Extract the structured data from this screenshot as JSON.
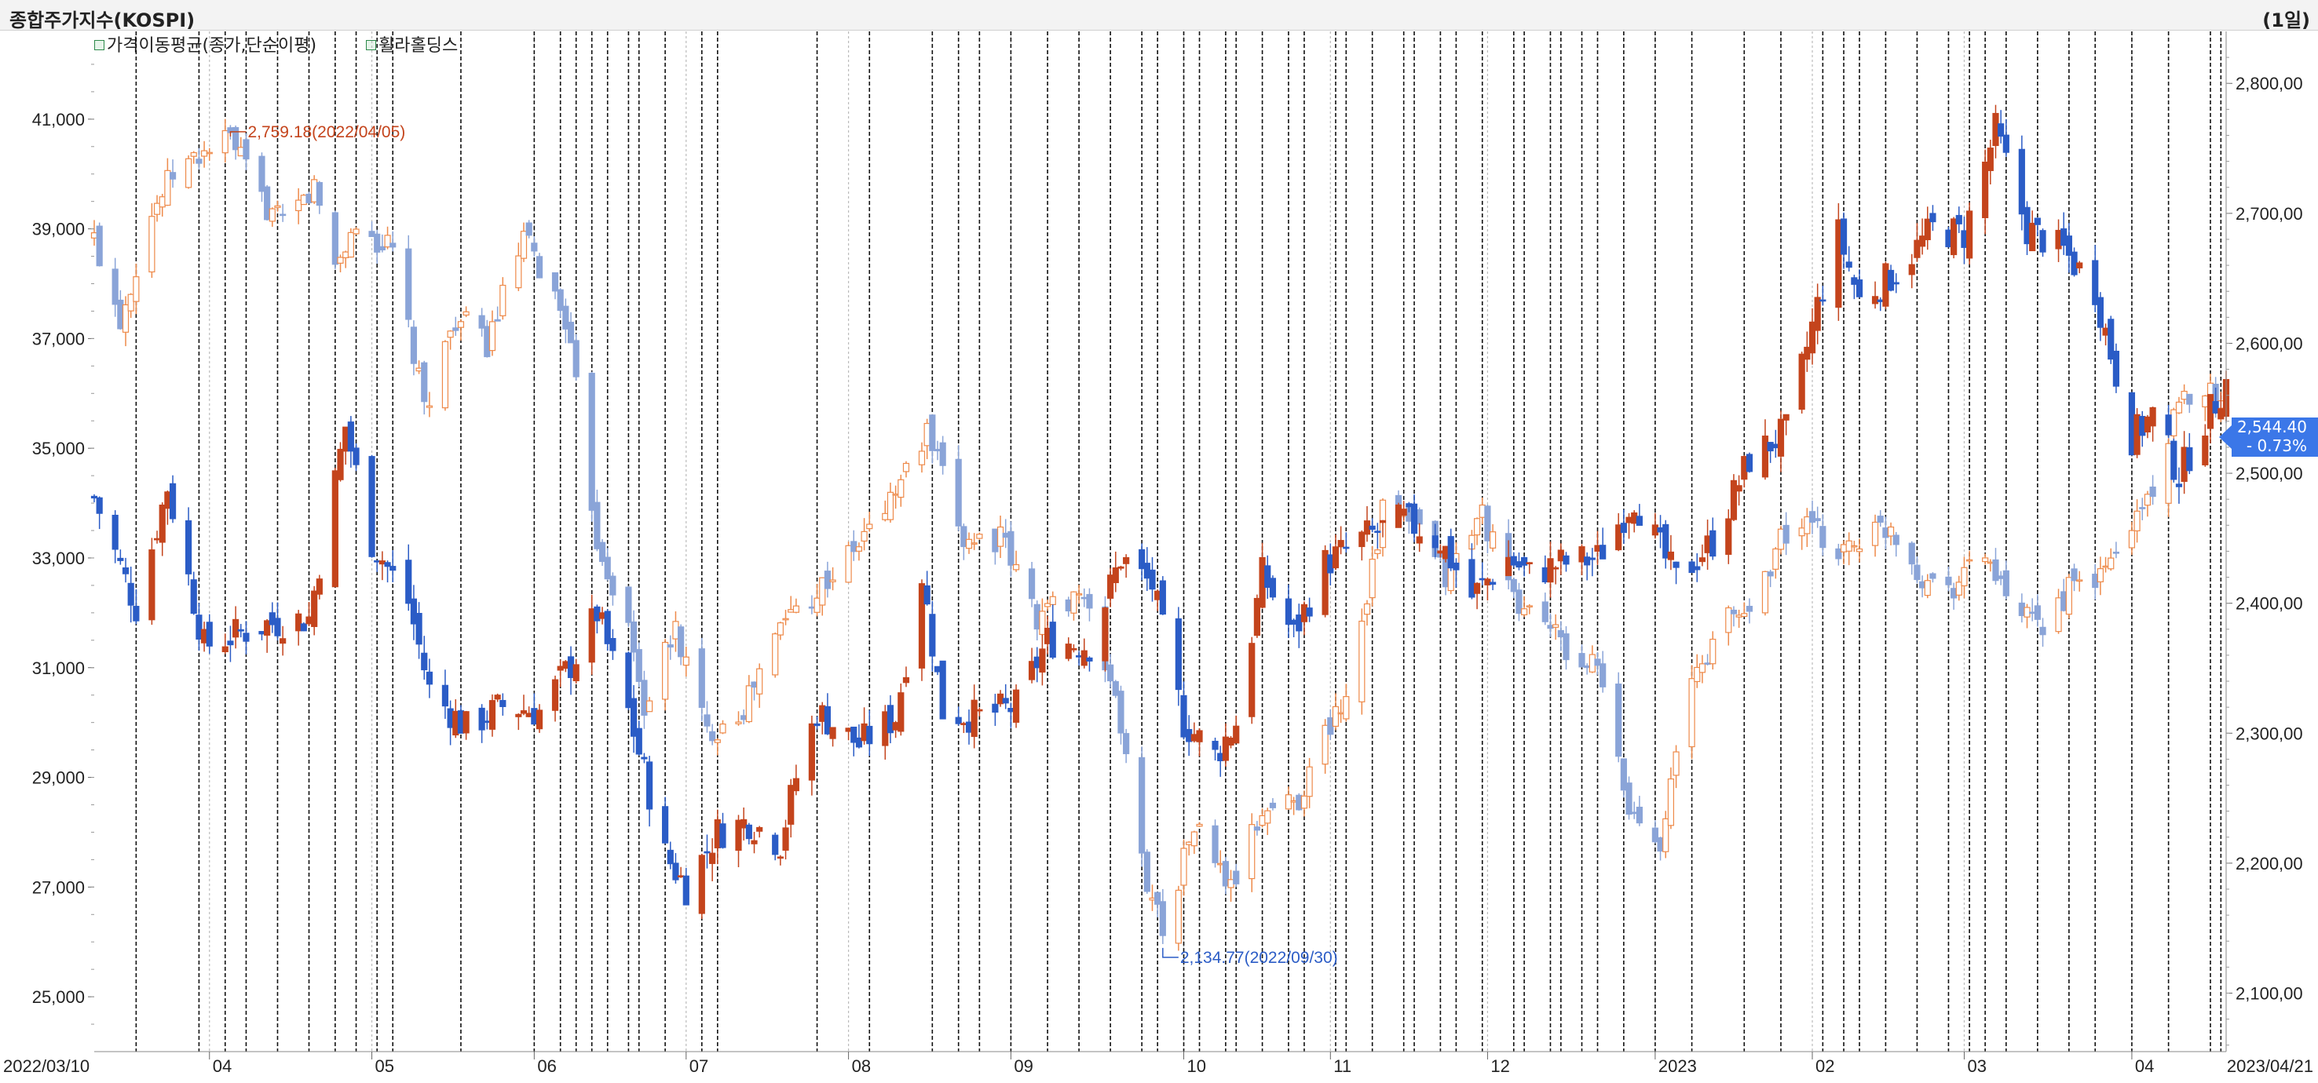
{
  "header": {
    "title": "종합주가지수(KOSPI)",
    "period": "(1일)"
  },
  "legend": [
    {
      "label": "가격이동평균(종가,단순이평)"
    },
    {
      "label": "휠라홀딩스"
    }
  ],
  "chart_data": {
    "type": "candlestick",
    "x_range": [
      "2022/03/10",
      "2023/04/21"
    ],
    "x_tick_labels": [
      "2022/03/10",
      "04",
      "05",
      "06",
      "07",
      "08",
      "09",
      "10",
      "11",
      "12",
      "2023",
      "02",
      "03",
      "04",
      "2023/04/21"
    ],
    "left_axis": {
      "ylim": [
        24000,
        42600
      ],
      "ticks": [
        "25,000",
        "27,000",
        "29,000",
        "31,000",
        "33,000",
        "35,000",
        "37,000",
        "39,000",
        "41,000"
      ]
    },
    "right_axis": {
      "ylim": [
        2055,
        2840
      ],
      "ticks": [
        "2,100,00",
        "2,200,00",
        "2,300,00",
        "2,400,00",
        "2,500,00",
        "2,600,00",
        "2,700,00",
        "2,800,00"
      ]
    },
    "colors": {
      "up": "#c4441c",
      "down": "#2b5cc6",
      "kospi_up": "#ee8a4a",
      "kospi_down": "#8aa4d8",
      "grid": "#111111",
      "month_line": "#bbbbbb"
    },
    "series": [
      {
        "name": "휠라홀딩스",
        "axis": "left",
        "style": "solid",
        "anchors": [
          [
            "2022/03/10",
            34100
          ],
          [
            "2022/03/18",
            32100
          ],
          [
            "2022/03/24",
            34300
          ],
          [
            "2022/03/31",
            31400
          ],
          [
            "2022/04/12",
            31800
          ],
          [
            "2022/04/20",
            31900
          ],
          [
            "2022/04/27",
            35400
          ],
          [
            "2022/05/02",
            33300
          ],
          [
            "2022/05/09",
            32200
          ],
          [
            "2022/05/13",
            30600
          ],
          [
            "2022/05/20",
            29900
          ],
          [
            "2022/05/27",
            30300
          ],
          [
            "2022/06/03",
            30200
          ],
          [
            "2022/06/10",
            31200
          ],
          [
            "2022/06/14",
            32000
          ],
          [
            "2022/06/20",
            30200
          ],
          [
            "2022/06/27",
            27600
          ],
          [
            "2022/07/01",
            27000
          ],
          [
            "2022/07/07",
            28000
          ],
          [
            "2022/07/13",
            28200
          ],
          [
            "2022/07/19",
            27800
          ],
          [
            "2022/07/22",
            29000
          ],
          [
            "2022/07/26",
            30200
          ],
          [
            "2022/08/03",
            29600
          ],
          [
            "2022/08/10",
            30100
          ],
          [
            "2022/08/15",
            32700
          ],
          [
            "2022/08/19",
            30200
          ],
          [
            "2022/08/26",
            30100
          ],
          [
            "2022/09/02",
            30300
          ],
          [
            "2022/09/08",
            31500
          ],
          [
            "2022/09/16",
            31400
          ],
          [
            "2022/09/22",
            33000
          ],
          [
            "2022/09/28",
            32500
          ],
          [
            "2022/10/04",
            30000
          ],
          [
            "2022/10/10",
            29400
          ],
          [
            "2022/10/14",
            30000
          ],
          [
            "2022/10/19",
            32700
          ],
          [
            "2022/10/25",
            31600
          ],
          [
            "2022/10/31",
            32900
          ],
          [
            "2022/11/08",
            33400
          ],
          [
            "2022/11/15",
            33700
          ],
          [
            "2022/11/22",
            33300
          ],
          [
            "2022/11/28",
            32300
          ],
          [
            "2022/12/05",
            33000
          ],
          [
            "2022/12/09",
            32700
          ],
          [
            "2022/12/15",
            32900
          ],
          [
            "2022/12/22",
            33000
          ],
          [
            "2022/12/29",
            34100
          ],
          [
            "2023/01/06",
            32600
          ],
          [
            "2023/01/13",
            33300
          ],
          [
            "2023/01/20",
            34800
          ],
          [
            "2023/01/27",
            35300
          ],
          [
            "2023/02/02",
            37600
          ],
          [
            "2023/02/06",
            38900
          ],
          [
            "2023/02/10",
            37700
          ],
          [
            "2023/02/17",
            38200
          ],
          [
            "2023/02/24",
            39000
          ],
          [
            "2023/03/02",
            38900
          ],
          [
            "2023/03/08",
            40800
          ],
          [
            "2023/03/14",
            39000
          ],
          [
            "2023/03/21",
            38600
          ],
          [
            "2023/03/27",
            37900
          ],
          [
            "2023/04/03",
            35200
          ],
          [
            "2023/04/07",
            35600
          ],
          [
            "2023/04/12",
            34500
          ],
          [
            "2023/04/17",
            35500
          ],
          [
            "2023/04/21",
            36200
          ]
        ]
      },
      {
        "name": "종합주가지수(KOSPI)",
        "axis": "right",
        "style": "light",
        "anchors": [
          [
            "2022/03/10",
            2680
          ],
          [
            "2022/03/15",
            2620
          ],
          [
            "2022/03/21",
            2700
          ],
          [
            "2022/03/25",
            2730
          ],
          [
            "2022/04/01",
            2750
          ],
          [
            "2022/04/05",
            2757
          ],
          [
            "2022/04/11",
            2710
          ],
          [
            "2022/04/15",
            2690
          ],
          [
            "2022/04/21",
            2720
          ],
          [
            "2022/04/25",
            2660
          ],
          [
            "2022/04/29",
            2690
          ],
          [
            "2022/05/06",
            2670
          ],
          [
            "2022/05/12",
            2550
          ],
          [
            "2022/05/18",
            2620
          ],
          [
            "2022/05/24",
            2600
          ],
          [
            "2022/05/31",
            2680
          ],
          [
            "2022/06/08",
            2620
          ],
          [
            "2022/06/14",
            2450
          ],
          [
            "2022/06/20",
            2380
          ],
          [
            "2022/06/23",
            2320
          ],
          [
            "2022/06/29",
            2380
          ],
          [
            "2022/07/05",
            2300
          ],
          [
            "2022/07/12",
            2320
          ],
          [
            "2022/07/20",
            2390
          ],
          [
            "2022/07/26",
            2410
          ],
          [
            "2022/08/02",
            2440
          ],
          [
            "2022/08/09",
            2480
          ],
          [
            "2022/08/16",
            2530
          ],
          [
            "2022/08/23",
            2450
          ],
          [
            "2022/08/30",
            2450
          ],
          [
            "2022/09/06",
            2390
          ],
          [
            "2022/09/14",
            2410
          ],
          [
            "2022/09/21",
            2330
          ],
          [
            "2022/09/26",
            2200
          ],
          [
            "2022/09/30",
            2150
          ],
          [
            "2022/10/06",
            2230
          ],
          [
            "2022/10/13",
            2180
          ],
          [
            "2022/10/19",
            2240
          ],
          [
            "2022/10/26",
            2250
          ],
          [
            "2022/10/31",
            2300
          ],
          [
            "2022/11/04",
            2330
          ],
          [
            "2022/11/11",
            2470
          ],
          [
            "2022/11/17",
            2460
          ],
          [
            "2022/11/23",
            2420
          ],
          [
            "2022/11/30",
            2470
          ],
          [
            "2022/12/06",
            2400
          ],
          [
            "2022/12/12",
            2390
          ],
          [
            "2022/12/16",
            2360
          ],
          [
            "2022/12/22",
            2350
          ],
          [
            "2022/12/28",
            2240
          ],
          [
            "2023/01/03",
            2220
          ],
          [
            "2023/01/09",
            2340
          ],
          [
            "2023/01/16",
            2390
          ],
          [
            "2023/01/20",
            2395
          ],
          [
            "2023/01/26",
            2450
          ],
          [
            "2023/01/31",
            2460
          ],
          [
            "2023/02/06",
            2440
          ],
          [
            "2023/02/10",
            2450
          ],
          [
            "2023/02/16",
            2460
          ],
          [
            "2023/02/22",
            2420
          ],
          [
            "2023/02/28",
            2415
          ],
          [
            "2023/03/06",
            2440
          ],
          [
            "2023/03/10",
            2400
          ],
          [
            "2023/03/16",
            2380
          ],
          [
            "2023/03/22",
            2410
          ],
          [
            "2023/03/28",
            2420
          ],
          [
            "2023/04/03",
            2460
          ],
          [
            "2023/04/07",
            2490
          ],
          [
            "2023/04/12",
            2550
          ],
          [
            "2023/04/17",
            2570
          ],
          [
            "2023/04/21",
            2544
          ]
        ]
      }
    ],
    "event_dates": [
      "2022/03/18",
      "2022/03/30",
      "2022/04/04",
      "2022/04/08",
      "2022/04/14",
      "2022/04/20",
      "2022/04/25",
      "2022/04/29",
      "2022/05/03",
      "2022/05/06",
      "2022/05/19",
      "2022/06/02",
      "2022/06/07",
      "2022/06/10",
      "2022/06/13",
      "2022/06/16",
      "2022/06/20",
      "2022/06/22",
      "2022/06/27",
      "2022/07/04",
      "2022/07/07",
      "2022/07/26",
      "2022/08/05",
      "2022/08/17",
      "2022/08/22",
      "2022/08/26",
      "2022/09/01",
      "2022/09/08",
      "2022/09/14",
      "2022/09/20",
      "2022/09/26",
      "2022/09/29",
      "2022/10/04",
      "2022/10/07",
      "2022/10/12",
      "2022/10/14",
      "2022/10/19",
      "2022/10/24",
      "2022/10/27",
      "2022/11/02",
      "2022/11/04",
      "2022/11/09",
      "2022/11/15",
      "2022/11/17",
      "2022/11/22",
      "2022/11/25",
      "2022/11/30",
      "2022/12/06",
      "2022/12/08",
      "2022/12/13",
      "2022/12/15",
      "2022/12/19",
      "2022/12/22",
      "2022/12/27",
      "2023/01/02",
      "2023/01/09",
      "2023/01/19",
      "2023/01/26",
      "2023/02/03",
      "2023/02/07",
      "2023/02/10",
      "2023/02/15",
      "2023/02/21",
      "2023/02/27",
      "2023/03/03",
      "2023/03/06",
      "2023/03/10",
      "2023/03/16",
      "2023/03/22",
      "2023/03/27",
      "2023/04/03",
      "2023/04/10",
      "2023/04/18",
      "2023/04/20"
    ],
    "annotations": [
      {
        "text": "2,759.18(2022/04/05)",
        "axis": "right",
        "x": "2022/04/05",
        "y": 2759.18,
        "color": "#c4441c"
      },
      {
        "text": "2,134.77(2022/09/30)",
        "axis": "right",
        "x": "2022/09/30",
        "y": 2134.77,
        "color": "#2b5cc6"
      }
    ],
    "last_value": {
      "value": "2,544.40",
      "change": "- 0.73%"
    }
  }
}
